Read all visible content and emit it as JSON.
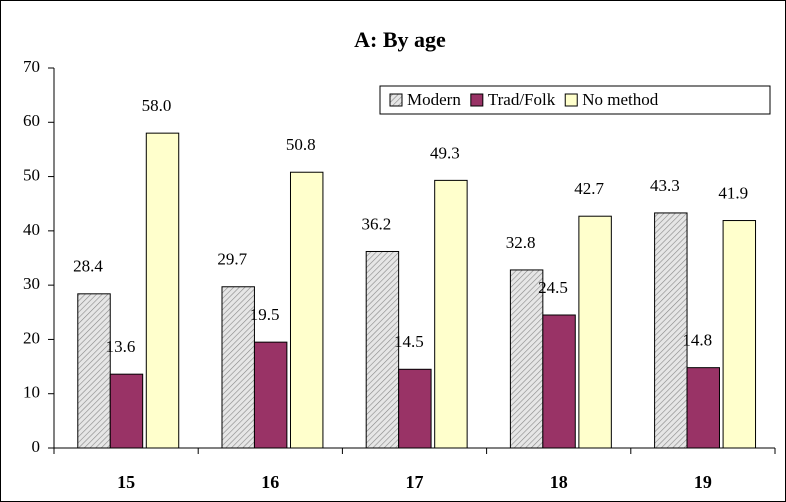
{
  "chart_data": {
    "type": "bar",
    "title": "A: By age",
    "categories": [
      "15",
      "16",
      "17",
      "18",
      "19"
    ],
    "series": [
      {
        "name": "Modern",
        "color": "#d9d9d9",
        "values": [
          28.4,
          29.7,
          36.2,
          32.8,
          43.3
        ],
        "value_labels": [
          "28.4",
          "29.7",
          "36.2",
          "32.8",
          "43.3"
        ]
      },
      {
        "name": "Trad/Folk",
        "color": "#993366",
        "values": [
          13.6,
          19.5,
          14.5,
          24.5,
          14.8
        ],
        "value_labels": [
          "13.6",
          "19.5",
          "14.5",
          "24.5",
          "14.8"
        ]
      },
      {
        "name": "No method",
        "color": "#ffffcc",
        "values": [
          58.0,
          50.8,
          49.3,
          42.7,
          41.9
        ],
        "value_labels": [
          "58.0",
          "50.8",
          "49.3",
          "42.7",
          "41.9"
        ]
      }
    ],
    "ylim": [
      0,
      70
    ],
    "yticks": [
      0,
      10,
      20,
      30,
      40,
      50,
      60,
      70
    ],
    "legend": "top-right",
    "grid": false
  }
}
